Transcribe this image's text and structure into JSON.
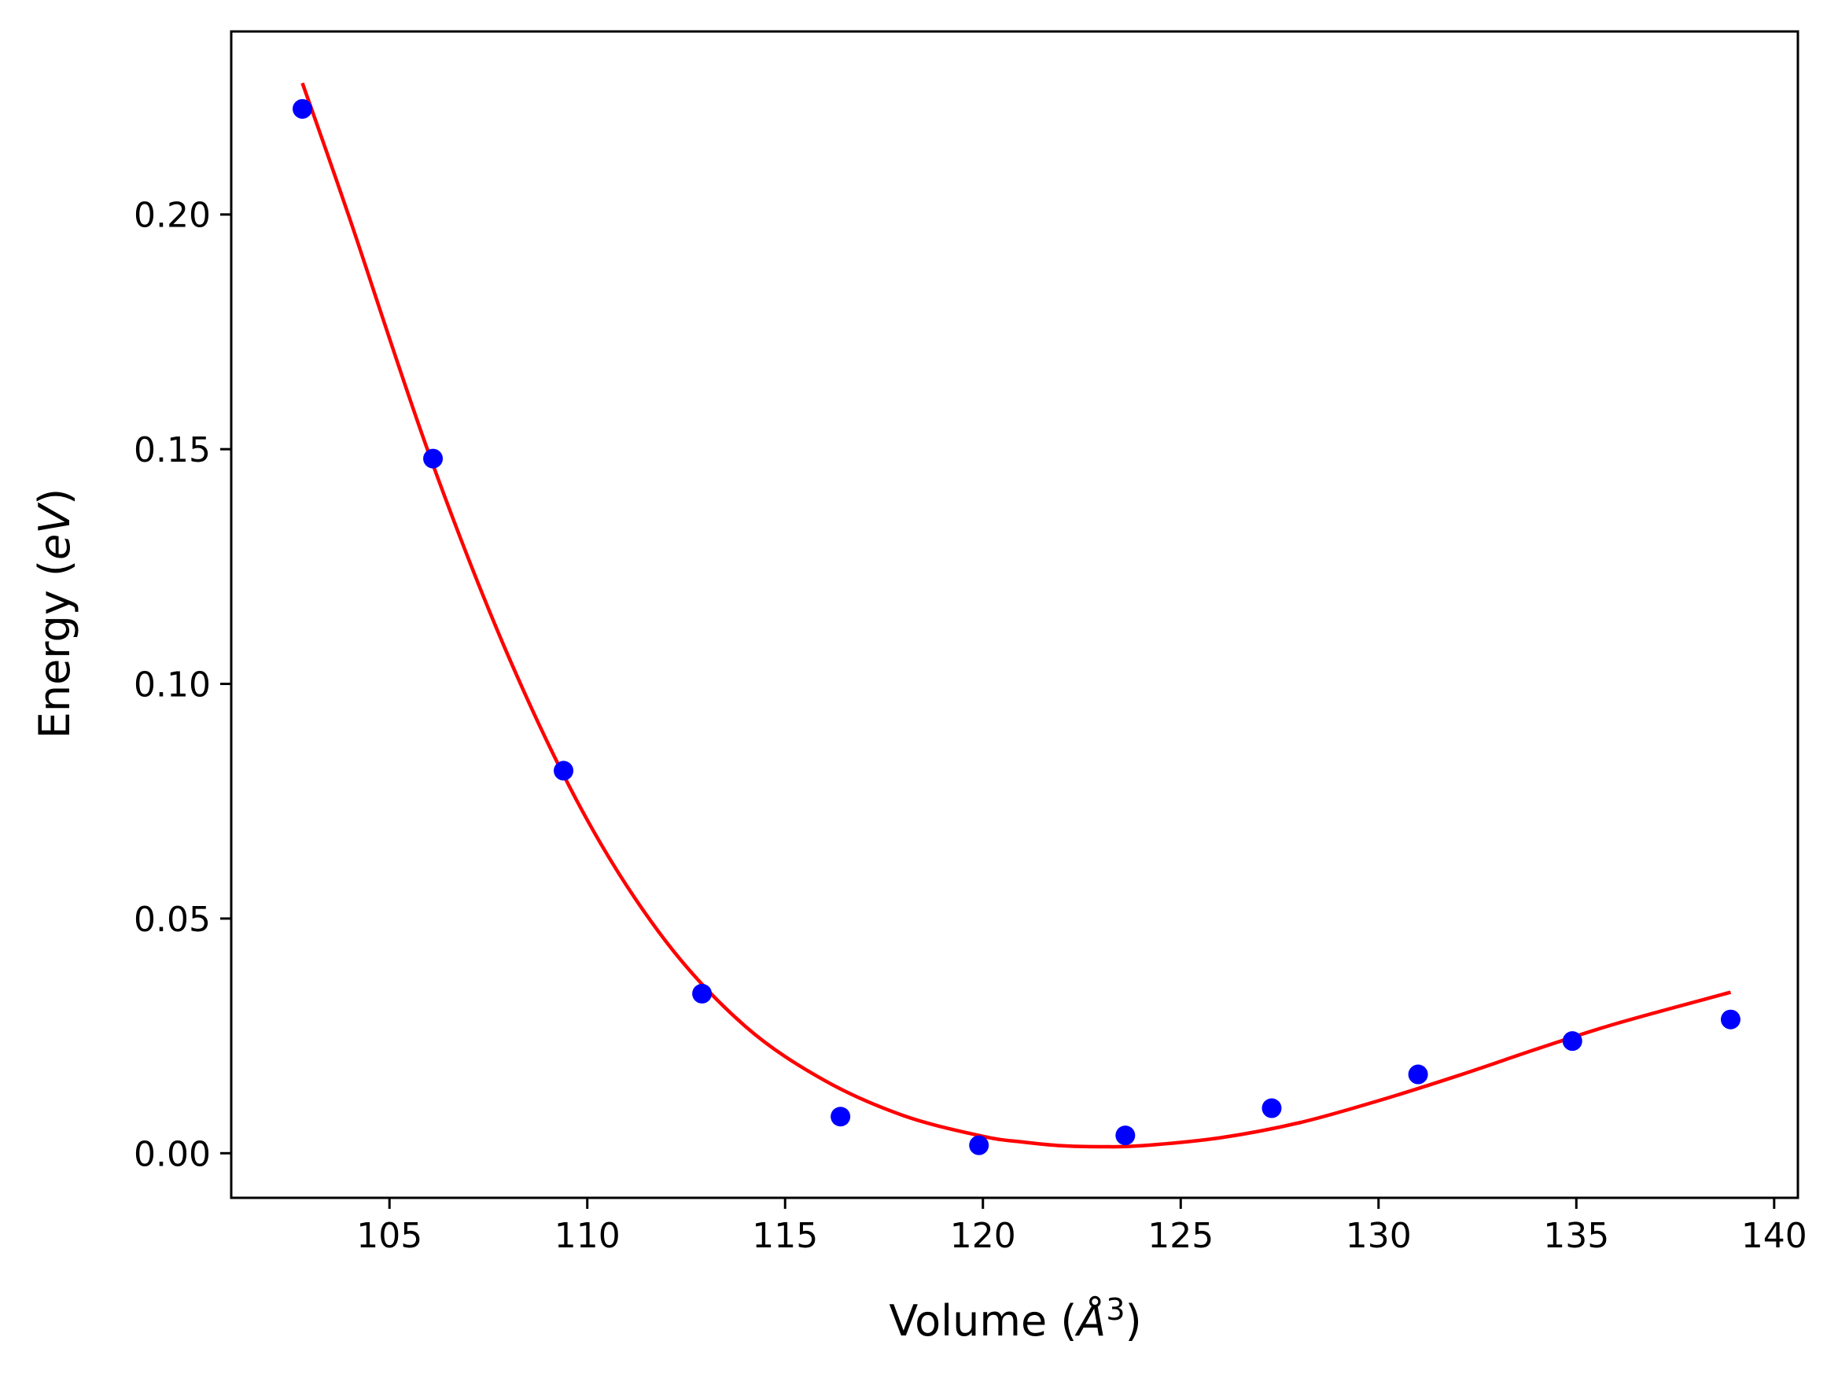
{
  "chart_data": {
    "type": "scatter",
    "title": "",
    "xlabel": "Volume",
    "ylabel": "Energy",
    "xlabel_unit_base": "Å",
    "xlabel_unit_exp": "3",
    "ylabel_unit": "eV",
    "xlim": [
      101,
      140.6
    ],
    "ylim": [
      -0.0095,
      0.239
    ],
    "xticks": [
      105,
      110,
      115,
      120,
      125,
      130,
      135,
      140
    ],
    "yticks": [
      0.0,
      0.05,
      0.1,
      0.15,
      0.2
    ],
    "xtick_labels": [
      "105",
      "110",
      "115",
      "120",
      "125",
      "130",
      "135",
      "140"
    ],
    "ytick_labels": [
      "0.00",
      "0.05",
      "0.10",
      "0.15",
      "0.20"
    ],
    "grid": false,
    "series": [
      {
        "type": "scatter",
        "color": "#0000ff",
        "x": [
          102.8,
          106.1,
          109.4,
          112.9,
          116.4,
          119.9,
          123.6,
          127.3,
          131.0,
          134.9,
          138.9
        ],
        "y": [
          0.2225,
          0.148,
          0.0815,
          0.034,
          0.0078,
          0.0017,
          0.0038,
          0.0096,
          0.0168,
          0.0239,
          0.0285
        ]
      },
      {
        "type": "line",
        "color": "#ff0000",
        "x": [
          102.8,
          104.0,
          106.0,
          108.0,
          110.0,
          112.0,
          114.0,
          116.0,
          118.0,
          120.0,
          121.0,
          122.0,
          123.0,
          124.0,
          126.0,
          128.0,
          130.0,
          132.0,
          134.0,
          136.0,
          138.9
        ],
        "y": [
          0.228,
          0.199,
          0.149,
          0.106,
          0.071,
          0.045,
          0.027,
          0.0155,
          0.008,
          0.0036,
          0.0024,
          0.0016,
          0.0014,
          0.0016,
          0.0033,
          0.0065,
          0.0112,
          0.0165,
          0.0222,
          0.0276,
          0.0343
        ]
      }
    ]
  }
}
